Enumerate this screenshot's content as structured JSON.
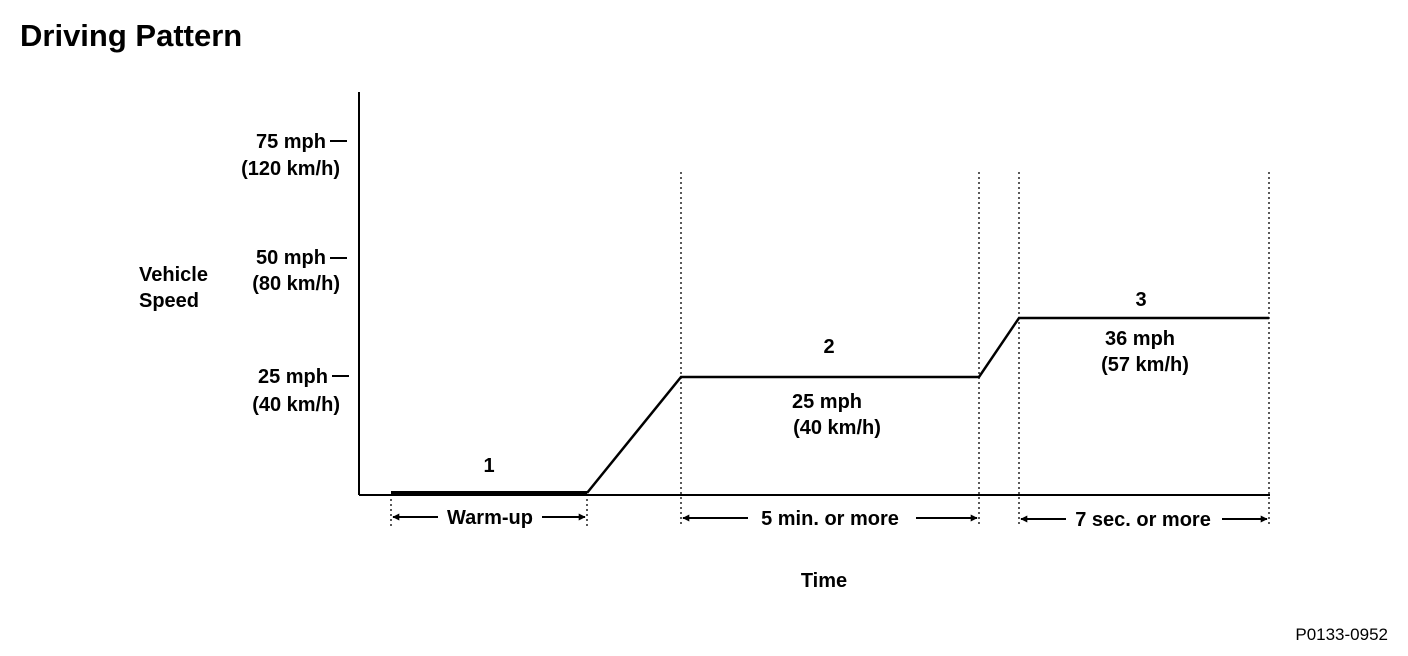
{
  "title": "Driving Pattern",
  "figure_code": "P0133-0952",
  "y_axis": {
    "label_line1": "Vehicle",
    "label_line2": "Speed",
    "ticks": [
      {
        "mph": "75 mph",
        "kmh": "(120 km/h)"
      },
      {
        "mph": "50 mph",
        "kmh": "(80 km/h)"
      },
      {
        "mph": "25 mph",
        "kmh": "(40 km/h)"
      }
    ]
  },
  "x_axis": {
    "label": "Time"
  },
  "phases": [
    {
      "number": "1",
      "duration": "Warm-up"
    },
    {
      "number": "2",
      "speed_mph": "25 mph",
      "speed_kmh": "(40 km/h)",
      "duration": "5 min. or more"
    },
    {
      "number": "3",
      "speed_mph": "36 mph",
      "speed_kmh": "(57 km/h)",
      "duration": "7 sec. or more"
    }
  ]
}
